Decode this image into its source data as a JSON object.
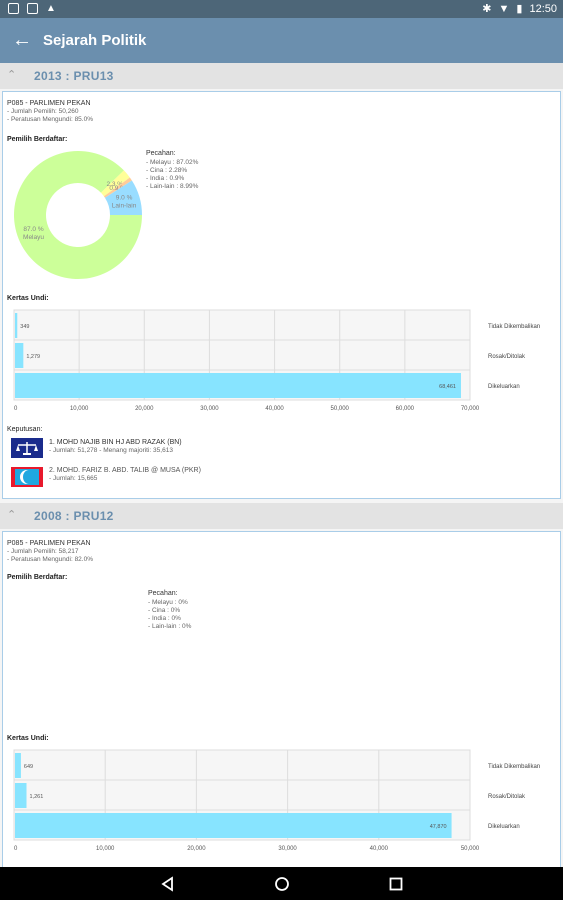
{
  "status_bar": {
    "time": "12:50"
  },
  "app_bar": {
    "title": "Sejarah Politik"
  },
  "sections": [
    {
      "header": "2013 : PRU13",
      "constituency": "P085 - PARLIMEN PEKAN",
      "jumlah_pemilih": "- Jumlah Pemilih: 50,260",
      "peratusan": "- Peratusan Mengundi: 85.0%",
      "pemilih_label": "Pemilih Berdaftar:",
      "pecahan_title": "Pecahan:",
      "pecahan": [
        "- Melayu   : 87.02%",
        "- Cina       : 2.28%",
        "- India       : 0.9%",
        "- Lain-lain : 8.99%"
      ],
      "donut": {
        "values": [
          87.02,
          2.28,
          0.9,
          8.99
        ],
        "colors": [
          "#ccff99",
          "#ffff99",
          "#ffcc99",
          "#99ddff"
        ],
        "labels": [
          "87.0 %\nMelayu",
          "2.3 %",
          "0.9 %",
          "9.0 %\nLain-lain"
        ]
      },
      "kertas_label": "Kertas Undi:",
      "bars": {
        "categories": [
          "Tidak Dikembalikan",
          "Rosak/Ditolak",
          "Dikeluarkan"
        ],
        "values": [
          349,
          1279,
          68461
        ],
        "value_labels": [
          "349",
          "1,279",
          "68,461"
        ],
        "xmax": 70000,
        "ticks": [
          "0",
          "10,000",
          "20,000",
          "30,000",
          "40,000",
          "50,000",
          "60,000",
          "70,000"
        ]
      },
      "keputusan_label": "Keputusan:",
      "candidates": [
        {
          "name": "1. MOHD NAJIB BIN HJ ABD RAZAK (BN)",
          "detail": "- Jumlah: 51,278 - Menang majoriti: 35,613",
          "logo": "bn-logo-icon"
        },
        {
          "name": "2. MOHD. FARIZ B. ABD. TALIB @ MUSA (PKR)",
          "detail": "- Jumlah: 15,665",
          "logo": "pkr-logo-icon"
        }
      ]
    },
    {
      "header": "2008 : PRU12",
      "constituency": "P085 - PARLIMEN PEKAN",
      "jumlah_pemilih": "- Jumlah Pemilih: 58,217",
      "peratusan": "- Peratusan Mengundi: 82.0%",
      "pemilih_label": "Pemilih Berdaftar:",
      "pecahan_title": "Pecahan:",
      "pecahan": [
        "- Melayu   : 0%",
        "- Cina       : 0%",
        "- India       : 0%",
        "- Lain-lain : 0%"
      ],
      "kertas_label": "Kertas Undi:",
      "bars": {
        "categories": [
          "Tidak Dikembalikan",
          "Rosak/Ditolak",
          "Dikeluarkan"
        ],
        "values": [
          649,
          1261,
          47870
        ],
        "value_labels": [
          "649",
          "1,261",
          "47,870"
        ],
        "xmax": 50000,
        "ticks": [
          "0",
          "10,000",
          "20,000",
          "30,000",
          "40,000",
          "50,000"
        ]
      }
    }
  ],
  "colors": {
    "app_bar": "#6b8fae",
    "bar": "#87e4ff",
    "card_border": "#a9cde8"
  }
}
